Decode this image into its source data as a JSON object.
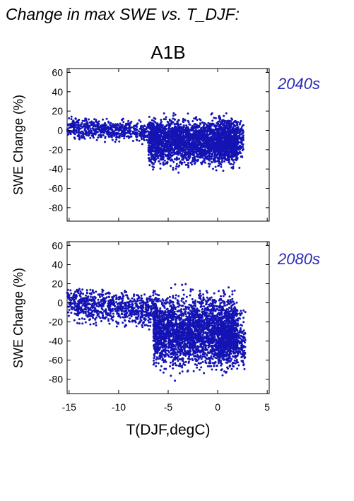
{
  "title": "Change in max SWE vs. T_DJF:",
  "scenario": "A1B",
  "colors": {
    "points": "#1414b4",
    "period_label": "#2a2ab4"
  },
  "chart_data": [
    {
      "type": "scatter",
      "period": "2040s",
      "ylabel": "SWE Change (%)",
      "xlabel": "",
      "xlim": [
        -15.2,
        5.2
      ],
      "ylim": [
        -94,
        64
      ],
      "yticks": [
        "60",
        "40",
        "20",
        "0",
        "-20",
        "-40",
        "-60",
        "-80"
      ],
      "xticks_shown": false,
      "grid": false,
      "n_points": 3800,
      "series": [
        {
          "color": "#1414b4",
          "clusters": [
            {
              "x_range": [
                -15.2,
                -6
              ],
              "y_center": 0,
              "y_spread": 8,
              "y_trend_per_deg": 2.0,
              "weight": 0.18
            },
            {
              "x_range": [
                -7,
                2
              ],
              "y_center": -12,
              "y_spread": 18,
              "y_min": -84,
              "y_max": 20,
              "weight": 0.72
            },
            {
              "x_range": [
                0,
                2.6
              ],
              "y_center": -10,
              "y_spread": 18,
              "y_min": -65,
              "y_max": 10,
              "weight": 0.1
            }
          ]
        }
      ]
    },
    {
      "type": "scatter",
      "period": "2080s",
      "ylabel": "SWE Change (%)",
      "xlabel": "T(DJF,degC)",
      "xlim": [
        -15.2,
        5.2
      ],
      "ylim": [
        -95,
        64
      ],
      "yticks": [
        "60",
        "40",
        "20",
        "0",
        "-20",
        "-40",
        "-60",
        "-80"
      ],
      "xticks": [
        "-15",
        "-10",
        "-5",
        "0",
        "5"
      ],
      "grid": false,
      "n_points": 4200,
      "series": [
        {
          "color": "#1414b4",
          "clusters": [
            {
              "x_range": [
                -15.2,
                -6
              ],
              "y_center": -5,
              "y_spread": 14,
              "y_trend_per_deg": 3.5,
              "weight": 0.2
            },
            {
              "x_range": [
                -6.5,
                2
              ],
              "y_center": -30,
              "y_spread": 28,
              "y_min": -94,
              "y_max": 24,
              "weight": 0.7
            },
            {
              "x_range": [
                0,
                2.8
              ],
              "y_center": -40,
              "y_spread": 22,
              "y_min": -80,
              "y_max": 15,
              "weight": 0.1
            }
          ]
        }
      ]
    }
  ]
}
